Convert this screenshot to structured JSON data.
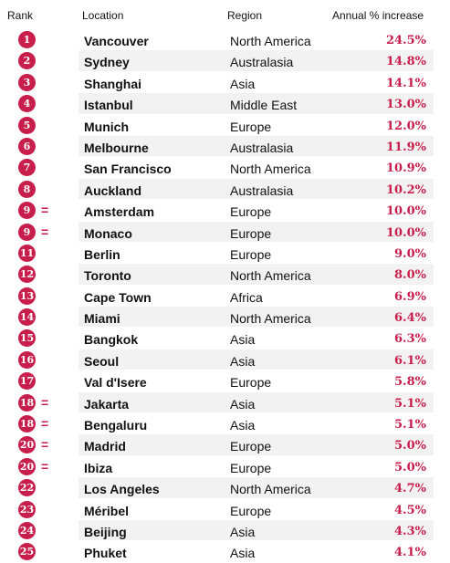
{
  "header": {
    "rank": "Rank",
    "location": "Location",
    "region": "Region",
    "increase": "Annual % increase"
  },
  "colors": {
    "accent": "#c81e4b",
    "stripe": "#f2f2f2"
  },
  "rows": [
    {
      "rank": "1",
      "equal": "",
      "location": "Vancouver",
      "region": "North America",
      "increase": "24.5%"
    },
    {
      "rank": "2",
      "equal": "",
      "location": "Sydney",
      "region": "Australasia",
      "increase": "14.8%"
    },
    {
      "rank": "3",
      "equal": "",
      "location": "Shanghai",
      "region": "Asia",
      "increase": "14.1%"
    },
    {
      "rank": "4",
      "equal": "",
      "location": "Istanbul",
      "region": "Middle East",
      "increase": "13.0%"
    },
    {
      "rank": "5",
      "equal": "",
      "location": "Munich",
      "region": "Europe",
      "increase": "12.0%"
    },
    {
      "rank": "6",
      "equal": "",
      "location": "Melbourne",
      "region": "Australasia",
      "increase": "11.9%"
    },
    {
      "rank": "7",
      "equal": "",
      "location": "San Francisco",
      "region": "North America",
      "increase": "10.9%"
    },
    {
      "rank": "8",
      "equal": "",
      "location": "Auckland",
      "region": "Australasia",
      "increase": "10.2%"
    },
    {
      "rank": "9",
      "equal": "=",
      "location": "Amsterdam",
      "region": "Europe",
      "increase": "10.0%"
    },
    {
      "rank": "9",
      "equal": "=",
      "location": "Monaco",
      "region": "Europe",
      "increase": "10.0%"
    },
    {
      "rank": "11",
      "equal": "",
      "location": "Berlin",
      "region": "Europe",
      "increase": "9.0%"
    },
    {
      "rank": "12",
      "equal": "",
      "location": "Toronto",
      "region": "North America",
      "increase": "8.0%"
    },
    {
      "rank": "13",
      "equal": "",
      "location": "Cape Town",
      "region": "Africa",
      "increase": "6.9%"
    },
    {
      "rank": "14",
      "equal": "",
      "location": "Miami",
      "region": "North America",
      "increase": "6.4%"
    },
    {
      "rank": "15",
      "equal": "",
      "location": "Bangkok",
      "region": "Asia",
      "increase": "6.3%"
    },
    {
      "rank": "16",
      "equal": "",
      "location": "Seoul",
      "region": "Asia",
      "increase": "6.1%"
    },
    {
      "rank": "17",
      "equal": "",
      "location": "Val d'Isere",
      "region": "Europe",
      "increase": "5.8%"
    },
    {
      "rank": "18",
      "equal": "=",
      "location": "Jakarta",
      "region": "Asia",
      "increase": "5.1%"
    },
    {
      "rank": "18",
      "equal": "=",
      "location": "Bengaluru",
      "region": "Asia",
      "increase": "5.1%"
    },
    {
      "rank": "20",
      "equal": "=",
      "location": "Madrid",
      "region": "Europe",
      "increase": "5.0%"
    },
    {
      "rank": "20",
      "equal": "=",
      "location": "Ibiza",
      "region": "Europe",
      "increase": "5.0%"
    },
    {
      "rank": "22",
      "equal": "",
      "location": "Los Angeles",
      "region": "North America",
      "increase": "4.7%"
    },
    {
      "rank": "23",
      "equal": "",
      "location": "Méribel",
      "region": "Europe",
      "increase": "4.5%"
    },
    {
      "rank": "24",
      "equal": "",
      "location": "Beijing",
      "region": "Asia",
      "increase": "4.3%"
    },
    {
      "rank": "25",
      "equal": "",
      "location": "Phuket",
      "region": "Asia",
      "increase": "4.1%"
    }
  ]
}
